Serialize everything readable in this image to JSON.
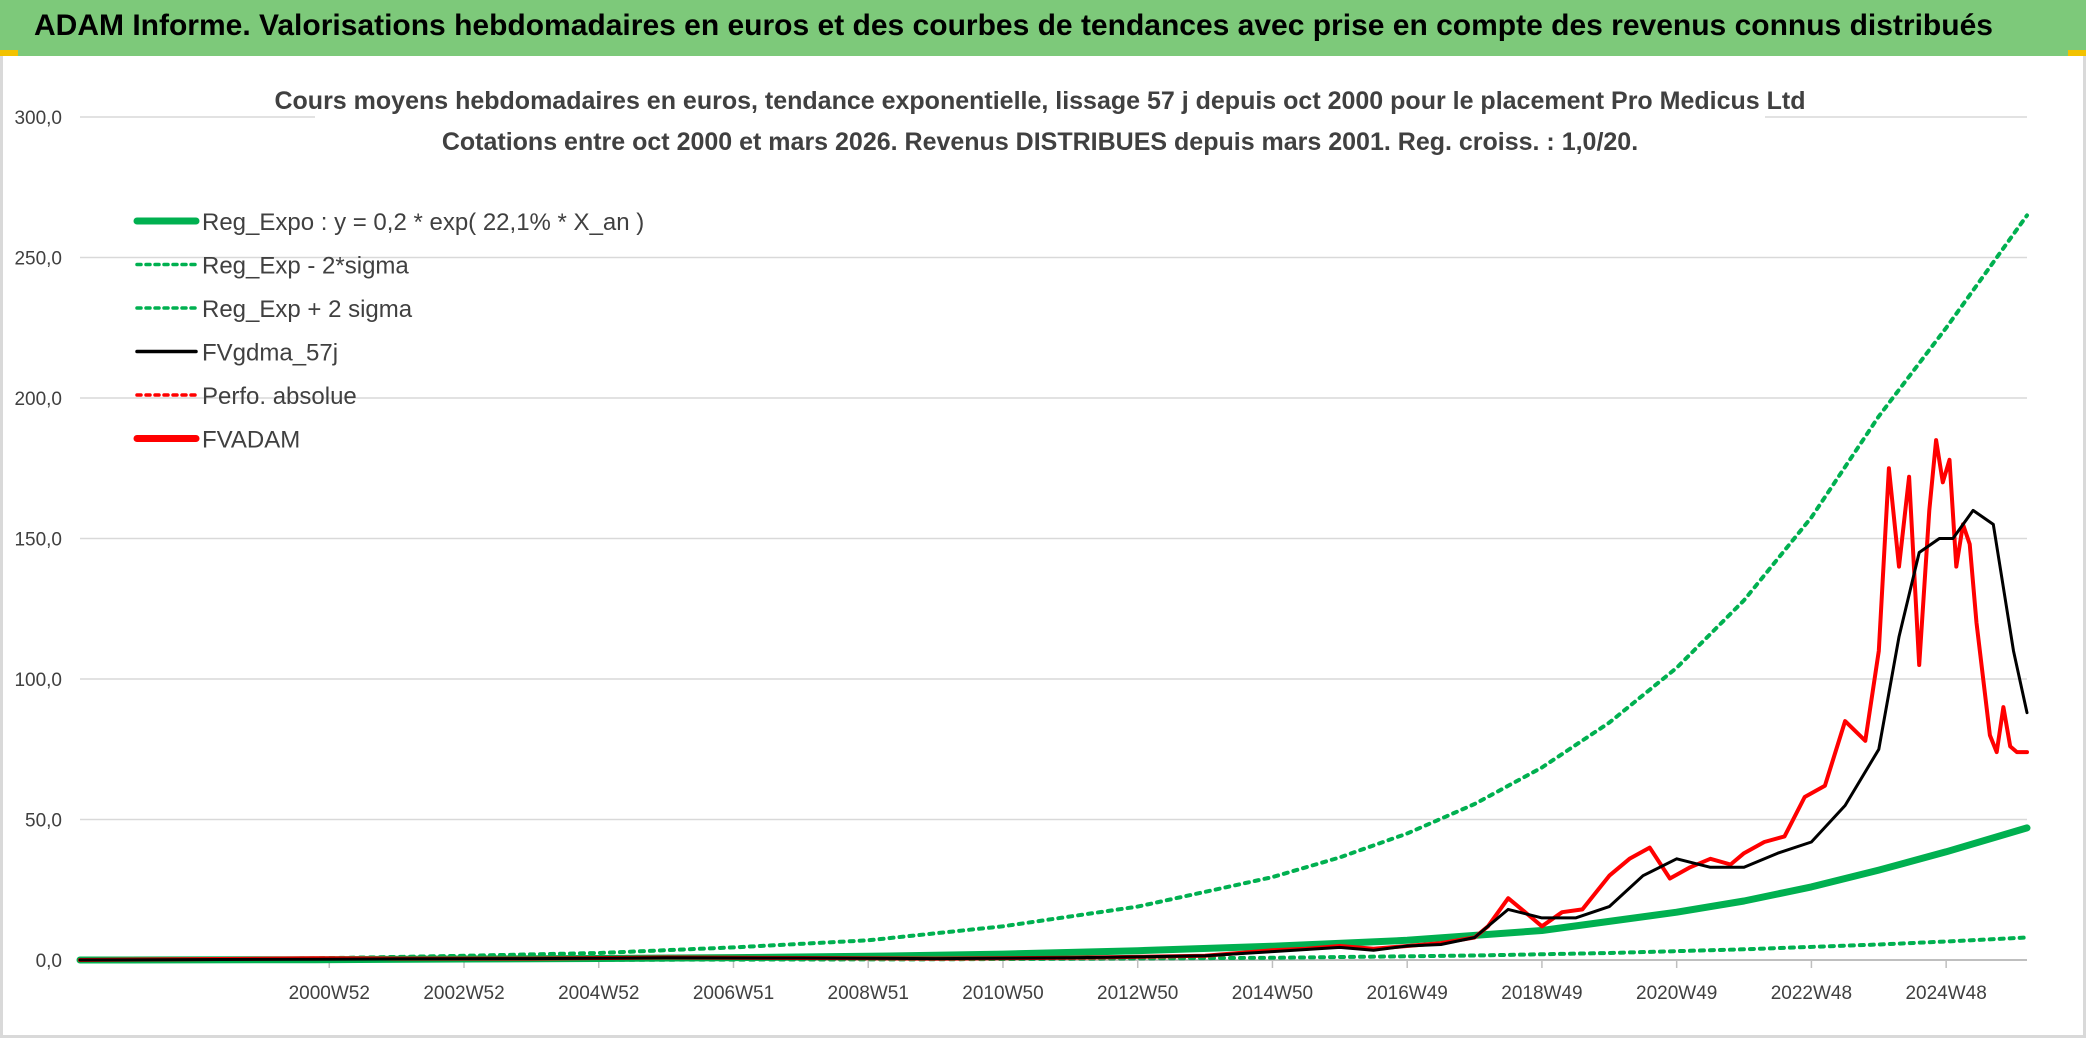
{
  "banner": {
    "title": "ADAM Informe. Valorisations hebdomadaires en euros et des courbes de tendances avec prise en compte des revenus connus distribués"
  },
  "colors": {
    "banner_bg": "#7dc97a",
    "green": "#00b050",
    "black": "#000000",
    "red": "#ff0000",
    "grid": "#d9d9d9"
  },
  "chart_data": {
    "type": "line",
    "title": "Cours moyens hebdomadaires en euros, tendance exponentielle, lissage 57 j depuis oct 2000 pour le placement Pro Medicus Ltd",
    "subtitle": "Cotations entre oct 2000 et mars 2026. Revenus DISTRIBUES depuis mars 2001. Reg. croiss. : 1,0/20.",
    "xlabel": "",
    "ylabel": "",
    "ylim": [
      0,
      300
    ],
    "xlim": [
      1997.3,
      2026.2
    ],
    "y_ticks": [
      "0,0",
      "50,0",
      "100,0",
      "150,0",
      "200,0",
      "250,0",
      "300,0"
    ],
    "x_ticks": [
      {
        "label": "2000W52",
        "x": 2001.0
      },
      {
        "label": "2002W52",
        "x": 2003.0
      },
      {
        "label": "2004W52",
        "x": 2005.0
      },
      {
        "label": "2006W51",
        "x": 2007.0
      },
      {
        "label": "2008W51",
        "x": 2009.0
      },
      {
        "label": "2010W50",
        "x": 2011.0
      },
      {
        "label": "2012W50",
        "x": 2013.0
      },
      {
        "label": "2014W50",
        "x": 2015.0
      },
      {
        "label": "2016W49",
        "x": 2017.0
      },
      {
        "label": "2018W49",
        "x": 2019.0
      },
      {
        "label": "2020W49",
        "x": 2021.0
      },
      {
        "label": "2022W48",
        "x": 2023.0
      },
      {
        "label": "2024W48",
        "x": 2025.0
      }
    ],
    "grid": "horizontal",
    "legend_position": "top-left",
    "legend": [
      {
        "label": "Reg_Expo : y = 0,2 * exp( 22,1% *  X_an )",
        "style": "solid-thick",
        "color": "#00b050"
      },
      {
        "label": "Reg_Exp - 2*sigma",
        "style": "dotted",
        "color": "#00b050"
      },
      {
        "label": "Reg_Exp + 2 sigma",
        "style": "dotted",
        "color": "#00b050"
      },
      {
        "label": "FVgdma_57j",
        "style": "solid",
        "color": "#000000"
      },
      {
        "label": "Perfo. absolue",
        "style": "dotted",
        "color": "#ff0000"
      },
      {
        "label": "FVADAM",
        "style": "solid-thick",
        "color": "#ff0000"
      }
    ],
    "series": [
      {
        "name": "Reg_Expo : y = 0,2 * exp( 22,1% *  X_an )",
        "x": [
          1997.3,
          2000.8,
          2003,
          2005,
          2007,
          2009,
          2011,
          2013,
          2015,
          2017,
          2019,
          2021,
          2022,
          2023,
          2024,
          2025,
          2026.2
        ],
        "values": [
          0.0,
          0.12,
          0.35,
          0.55,
          0.85,
          1.3,
          2.1,
          3.3,
          4.9,
          7.0,
          10.5,
          17.0,
          21.0,
          26.0,
          32.0,
          38.5,
          47.0
        ]
      },
      {
        "name": "Reg_Exp - 2*sigma",
        "x": [
          1997.3,
          2000.8,
          2005,
          2010,
          2015,
          2018,
          2020,
          2022,
          2024,
          2025,
          2026.2
        ],
        "values": [
          0.0,
          0.02,
          0.08,
          0.25,
          0.8,
          1.6,
          2.5,
          3.8,
          5.5,
          6.6,
          8.0
        ]
      },
      {
        "name": "Reg_Exp + 2 sigma",
        "x": [
          1997.3,
          2000.8,
          2003,
          2005,
          2007,
          2009,
          2011,
          2013,
          2015,
          2016,
          2017,
          2018,
          2019,
          2020,
          2021,
          2022,
          2023,
          2024,
          2025,
          2026.2
        ],
        "values": [
          0.0,
          0.6,
          1.5,
          2.5,
          4.5,
          7.0,
          12.0,
          19.0,
          29.5,
          36.5,
          45.0,
          55.5,
          68.5,
          84.5,
          104.0,
          128.0,
          157.5,
          193.5,
          225.0,
          265.0
        ]
      },
      {
        "name": "FVgdma_57j",
        "x": [
          1997.3,
          2000.8,
          2002,
          2004,
          2006,
          2008,
          2010,
          2012,
          2014,
          2015,
          2016,
          2016.5,
          2017,
          2017.5,
          2018,
          2018.5,
          2019,
          2019.5,
          2020,
          2020.5,
          2021,
          2021.5,
          2022,
          2022.5,
          2023,
          2023.5,
          2024,
          2024.3,
          2024.6,
          2024.9,
          2025.1,
          2025.4,
          2025.7,
          2026.0,
          2026.2
        ],
        "values": [
          0.0,
          0.3,
          0.4,
          0.5,
          0.8,
          0.7,
          0.5,
          0.8,
          1.5,
          3.0,
          4.5,
          3.5,
          5.0,
          5.5,
          8.0,
          18.0,
          15.0,
          15.0,
          19.0,
          30.0,
          36.0,
          33.0,
          33.0,
          38.0,
          42.0,
          55.0,
          75.0,
          115.0,
          145.0,
          150.0,
          150.0,
          160.0,
          155.0,
          110.0,
          88.0
        ]
      },
      {
        "name": "FVADAM",
        "x": [
          1997.3,
          2000.8,
          2002,
          2004,
          2006,
          2008,
          2010,
          2012,
          2014,
          2015,
          2015.5,
          2016,
          2016.5,
          2017,
          2017.5,
          2018,
          2018.2,
          2018.5,
          2018.8,
          2019,
          2019.3,
          2019.6,
          2020,
          2020.3,
          2020.6,
          2020.9,
          2021.2,
          2021.5,
          2021.8,
          2022,
          2022.3,
          2022.6,
          2022.9,
          2023.2,
          2023.5,
          2023.8,
          2024,
          2024.15,
          2024.3,
          2024.45,
          2024.6,
          2024.75,
          2024.85,
          2024.95,
          2025.05,
          2025.15,
          2025.25,
          2025.35,
          2025.45,
          2025.55,
          2025.65,
          2025.75,
          2025.85,
          2025.95,
          2026.05,
          2026.2
        ],
        "values": [
          0.0,
          0.6,
          0.5,
          0.5,
          0.9,
          0.7,
          0.5,
          0.8,
          1.5,
          3.5,
          4.0,
          5.0,
          4.0,
          5.0,
          6.0,
          8.0,
          12.0,
          22.0,
          16.0,
          12.0,
          17.0,
          18.0,
          30.0,
          36.0,
          40.0,
          29.0,
          33.0,
          36.0,
          34.0,
          38.0,
          42.0,
          44.0,
          58.0,
          62.0,
          85.0,
          78.0,
          110.0,
          175.0,
          140.0,
          172.0,
          105.0,
          160.0,
          185.0,
          170.0,
          178.0,
          140.0,
          155.0,
          148.0,
          120.0,
          100.0,
          80.0,
          74.0,
          90.0,
          76.0,
          74.0,
          74.0
        ]
      }
    ]
  }
}
